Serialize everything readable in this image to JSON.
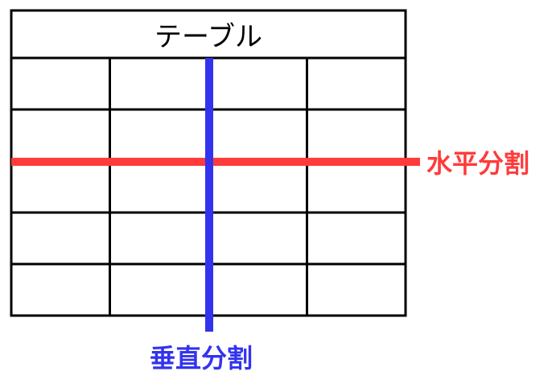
{
  "table": {
    "title": "テーブル",
    "columns": 4,
    "body_rows": 5
  },
  "split_lines": {
    "horizontal": {
      "label": "水平分割",
      "color": "#ff3b3b"
    },
    "vertical": {
      "label": "垂直分割",
      "color": "#3333ee"
    }
  }
}
